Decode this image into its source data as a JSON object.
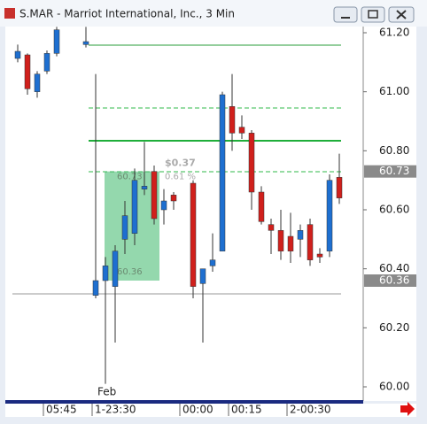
{
  "window": {
    "title": "S.MAR - Marriot International, Inc., 3 Min"
  },
  "chart_data": {
    "type": "candlestick",
    "categories": [
      null,
      null,
      null,
      null,
      "05:45",
      null,
      null,
      null,
      null,
      "1-23:30",
      null,
      null,
      null,
      null,
      null,
      null,
      null,
      null,
      "00:00",
      null,
      null,
      null,
      null,
      "00:15",
      null,
      null,
      null,
      null,
      null,
      "2-00:30",
      null,
      null,
      null,
      null
    ],
    "open": [
      61.113,
      61.125,
      61.0,
      61.07,
      61.13,
      null,
      null,
      61.16,
      60.31,
      60.36,
      60.34,
      60.5,
      60.52,
      60.67,
      60.73,
      60.6,
      60.65,
      null,
      60.69,
      60.35,
      60.41,
      60.46,
      60.95,
      60.88,
      60.86,
      60.66,
      60.55,
      60.53,
      60.51,
      60.5,
      60.55,
      60.45,
      60.46,
      60.71
    ],
    "high": [
      61.16,
      61.13,
      61.07,
      61.14,
      61.22,
      null,
      null,
      61.22,
      61.06,
      60.44,
      60.48,
      60.63,
      60.74,
      60.83,
      60.75,
      60.67,
      60.66,
      null,
      60.7,
      60.4,
      60.52,
      61.0,
      61.06,
      60.92,
      60.87,
      60.68,
      60.57,
      60.6,
      60.59,
      60.55,
      60.57,
      60.47,
      60.72,
      60.79
    ],
    "low": [
      61.1,
      60.99,
      60.98,
      61.06,
      61.12,
      null,
      null,
      61.15,
      60.3,
      60.01,
      60.15,
      60.45,
      60.48,
      60.65,
      60.55,
      60.55,
      60.6,
      null,
      60.3,
      60.15,
      60.39,
      60.46,
      60.8,
      60.84,
      60.6,
      60.55,
      60.45,
      60.43,
      60.42,
      60.44,
      60.41,
      60.42,
      60.44,
      60.62
    ],
    "close": [
      61.137,
      61.01,
      61.06,
      61.13,
      61.21,
      null,
      null,
      61.17,
      60.36,
      60.41,
      60.46,
      60.58,
      60.7,
      60.68,
      60.57,
      60.63,
      60.63,
      null,
      60.34,
      60.4,
      60.43,
      60.99,
      60.86,
      60.86,
      60.66,
      60.56,
      60.53,
      60.46,
      60.46,
      60.53,
      60.43,
      60.44,
      60.7,
      60.64
    ],
    "up_color": "#1e6fd0",
    "down_color": "#d0201c",
    "ylim": [
      59.955,
      61.221
    ],
    "yticks": [
      {
        "value": 61.2,
        "label": "61.20"
      },
      {
        "value": 61.0,
        "label": "61.00"
      },
      {
        "value": 60.8,
        "label": "60.80"
      },
      {
        "value": 60.6,
        "label": "60.60"
      },
      {
        "value": 60.4,
        "label": "60.40"
      },
      {
        "value": 60.2,
        "label": "60.20"
      },
      {
        "value": 60.0,
        "label": "60.00"
      }
    ],
    "annotation": "Feb",
    "levels": [
      61.158,
      60.834,
      60.945,
      60.729,
      60.315
    ],
    "price_markers": [
      60.73,
      60.36
    ],
    "measure": {
      "values": [
        60.36,
        60.73
      ],
      "change": {
        "value": 0.37,
        "label": "$0.37"
      },
      "percent": {
        "value": 0.61,
        "label": "0.61 %"
      }
    }
  }
}
